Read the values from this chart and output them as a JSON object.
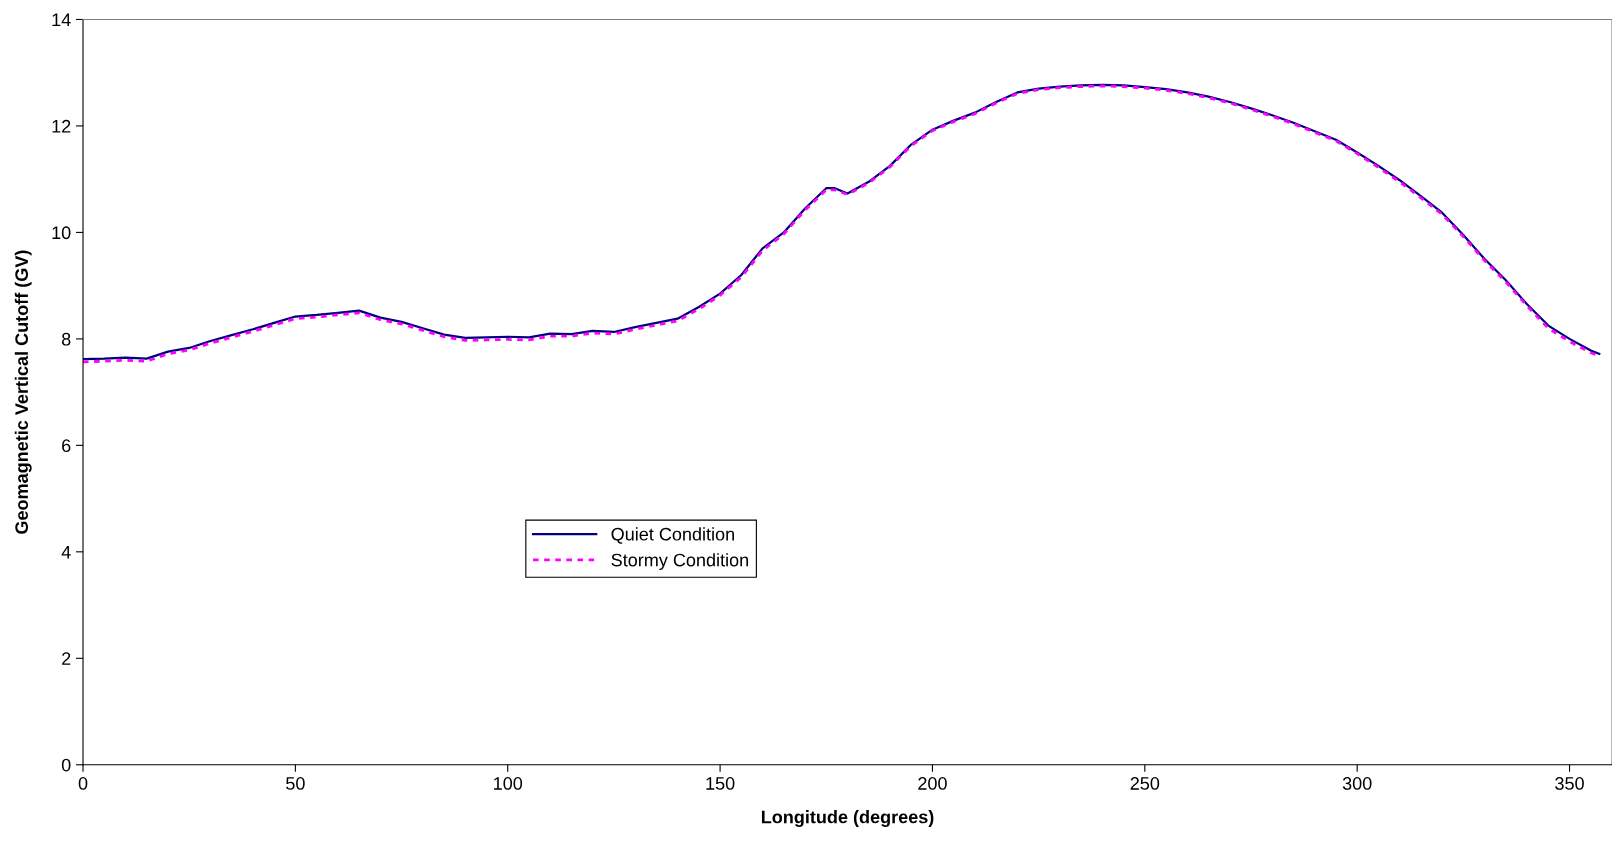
{
  "chart_data": {
    "type": "line",
    "xlabel": "Longitude (degrees)",
    "ylabel": "Geomagnetic Vertical Cutoff (GV)",
    "x": [
      0,
      5,
      10,
      15,
      20,
      25,
      30,
      35,
      40,
      45,
      50,
      55,
      60,
      65,
      70,
      75,
      80,
      85,
      90,
      95,
      100,
      105,
      110,
      115,
      120,
      125,
      130,
      135,
      140,
      145,
      150,
      155,
      160,
      165,
      170,
      175,
      177,
      180,
      185,
      190,
      195,
      200,
      205,
      210,
      215,
      220,
      225,
      230,
      235,
      240,
      245,
      250,
      255,
      260,
      265,
      270,
      275,
      280,
      285,
      290,
      295,
      300,
      305,
      310,
      315,
      320,
      325,
      330,
      335,
      340,
      345,
      350,
      355,
      357
    ],
    "series": [
      {
        "name": "Quiet Condition",
        "color": "#000080",
        "line_style": "solid",
        "values": [
          7.62,
          7.63,
          7.65,
          7.63,
          7.76,
          7.83,
          7.96,
          8.07,
          8.18,
          8.3,
          8.42,
          8.45,
          8.49,
          8.53,
          8.4,
          8.32,
          8.2,
          8.08,
          8.02,
          8.03,
          8.04,
          8.03,
          8.1,
          8.09,
          8.15,
          8.13,
          8.22,
          8.3,
          8.38,
          8.6,
          8.85,
          9.2,
          9.7,
          10.0,
          10.45,
          10.83,
          10.83,
          10.73,
          10.95,
          11.25,
          11.65,
          11.93,
          12.1,
          12.25,
          12.45,
          12.63,
          12.7,
          12.74,
          12.76,
          12.77,
          12.76,
          12.73,
          12.69,
          12.63,
          12.55,
          12.45,
          12.33,
          12.2,
          12.06,
          11.9,
          11.74,
          11.5,
          11.25,
          10.98,
          10.68,
          10.37,
          9.95,
          9.5,
          9.1,
          8.65,
          8.25,
          8.0,
          7.78,
          7.72
        ]
      },
      {
        "name": "Stormy Condition",
        "color": "#ff00ff",
        "line_style": "dotted",
        "values": [
          7.57,
          7.58,
          7.6,
          7.58,
          7.72,
          7.79,
          7.92,
          8.03,
          8.14,
          8.26,
          8.38,
          8.41,
          8.45,
          8.49,
          8.36,
          8.28,
          8.16,
          8.04,
          7.97,
          7.98,
          7.99,
          7.98,
          8.05,
          8.05,
          8.11,
          8.09,
          8.18,
          8.26,
          8.34,
          8.56,
          8.82,
          9.16,
          9.66,
          9.97,
          10.42,
          10.8,
          10.8,
          10.71,
          10.93,
          11.23,
          11.63,
          11.91,
          12.08,
          12.23,
          12.43,
          12.61,
          12.68,
          12.72,
          12.74,
          12.75,
          12.74,
          12.71,
          12.67,
          12.61,
          12.53,
          12.43,
          12.31,
          12.18,
          12.04,
          11.88,
          11.72,
          11.48,
          11.22,
          10.95,
          10.65,
          10.34,
          9.92,
          9.47,
          9.07,
          8.62,
          8.2,
          7.95,
          7.74,
          7.68
        ]
      }
    ],
    "xlim": [
      0,
      360
    ],
    "xticks": [
      0,
      50,
      100,
      150,
      200,
      250,
      300,
      350
    ],
    "ylim": [
      0,
      14
    ],
    "yticks": [
      0,
      2,
      4,
      6,
      8,
      10,
      12,
      14
    ],
    "grid": false,
    "legend": "center",
    "marker": "none"
  }
}
